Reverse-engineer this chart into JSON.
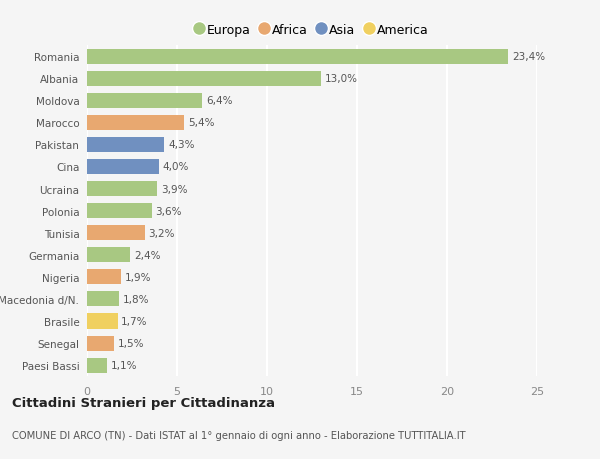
{
  "countries": [
    "Romania",
    "Albania",
    "Moldova",
    "Marocco",
    "Pakistan",
    "Cina",
    "Ucraina",
    "Polonia",
    "Tunisia",
    "Germania",
    "Nigeria",
    "Macedonia d/N.",
    "Brasile",
    "Senegal",
    "Paesi Bassi"
  ],
  "values": [
    23.4,
    13.0,
    6.4,
    5.4,
    4.3,
    4.0,
    3.9,
    3.6,
    3.2,
    2.4,
    1.9,
    1.8,
    1.7,
    1.5,
    1.1
  ],
  "labels": [
    "23,4%",
    "13,0%",
    "6,4%",
    "5,4%",
    "4,3%",
    "4,0%",
    "3,9%",
    "3,6%",
    "3,2%",
    "2,4%",
    "1,9%",
    "1,8%",
    "1,7%",
    "1,5%",
    "1,1%"
  ],
  "continents": [
    "Europa",
    "Europa",
    "Europa",
    "Africa",
    "Asia",
    "Asia",
    "Europa",
    "Europa",
    "Africa",
    "Europa",
    "Africa",
    "Europa",
    "America",
    "Africa",
    "Europa"
  ],
  "continent_colors": {
    "Europa": "#a8c882",
    "Africa": "#e8a870",
    "Asia": "#7090c0",
    "America": "#f0d060"
  },
  "legend_order": [
    "Europa",
    "Africa",
    "Asia",
    "America"
  ],
  "title": "Cittadini Stranieri per Cittadinanza",
  "subtitle": "COMUNE DI ARCO (TN) - Dati ISTAT al 1° gennaio di ogni anno - Elaborazione TUTTITALIA.IT",
  "xlim": [
    0,
    25
  ],
  "xticks": [
    0,
    5,
    10,
    15,
    20,
    25
  ],
  "background_color": "#f5f5f5",
  "grid_color": "#ffffff",
  "bar_height": 0.68,
  "label_fontsize": 7.5,
  "ytick_fontsize": 7.5,
  "xtick_fontsize": 8.0
}
